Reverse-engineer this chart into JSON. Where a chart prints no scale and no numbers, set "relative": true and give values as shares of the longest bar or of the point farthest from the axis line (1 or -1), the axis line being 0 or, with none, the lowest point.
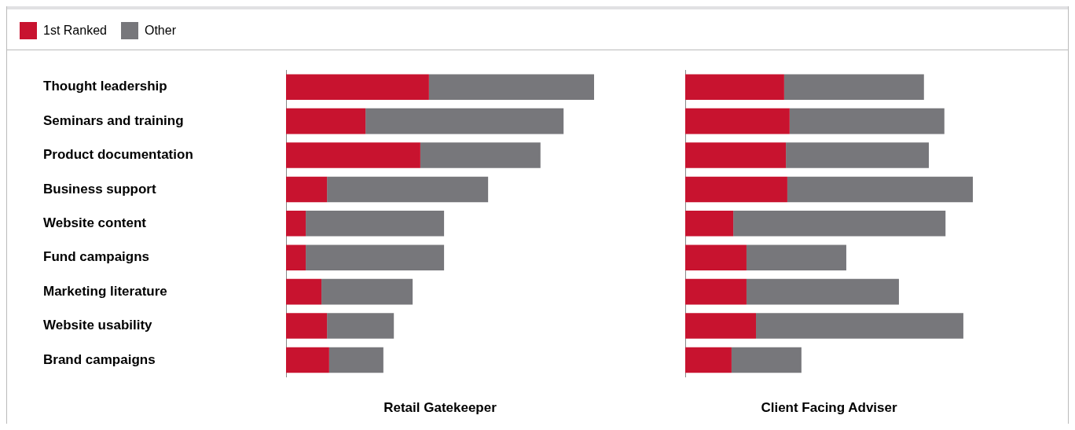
{
  "chart_data": [
    {
      "type": "bar",
      "orientation": "horizontal",
      "stacked": true,
      "relative": true,
      "legend": "top left",
      "xlabel": "Retail Gatekeeper",
      "categories": [
        "Thought leadership",
        "Seminars and training",
        "Product documentation",
        "Business support",
        "Website content",
        "Fund campaigns",
        "Marketing literature",
        "Website usability",
        "Brand campaigns"
      ],
      "series": [
        {
          "name": "1st Ranked",
          "color": "#c8132f",
          "values": [
            0.464,
            0.258,
            0.436,
            0.133,
            0.064,
            0.064,
            0.115,
            0.133,
            0.14
          ]
        },
        {
          "name": "Other",
          "color": "#77777b",
          "values": [
            0.536,
            0.643,
            0.39,
            0.523,
            0.449,
            0.449,
            0.296,
            0.217,
            0.176
          ]
        }
      ]
    },
    {
      "type": "bar",
      "orientation": "horizontal",
      "stacked": true,
      "relative": true,
      "xlabel": "Client Facing Adviser",
      "categories": [
        null,
        null,
        null,
        null,
        null,
        null,
        null,
        null,
        null
      ],
      "series": [
        {
          "color": "#c8132f",
          "values": [
            0.344,
            0.363,
            0.35,
            0.355,
            0.167,
            0.213,
            0.213,
            0.246,
            0.161
          ]
        },
        {
          "color": "#77777b",
          "values": [
            0.486,
            0.538,
            0.497,
            0.645,
            0.738,
            0.347,
            0.53,
            0.721,
            0.243
          ]
        }
      ]
    }
  ]
}
